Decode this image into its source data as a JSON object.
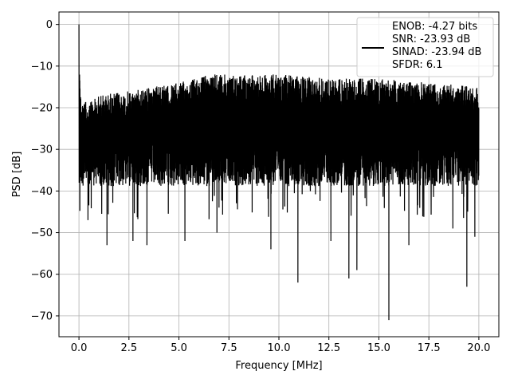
{
  "chart_data": {
    "type": "line",
    "title": "",
    "xlabel": "Frequency [MHz]",
    "ylabel": "PSD [dB]",
    "xlim": [
      -1.0,
      21.0
    ],
    "ylim": [
      -75,
      3
    ],
    "x_ticks": [
      0.0,
      2.5,
      5.0,
      7.5,
      10.0,
      12.5,
      15.0,
      17.5,
      20.0
    ],
    "x_tick_labels": [
      "0.0",
      "2.5",
      "5.0",
      "7.5",
      "10.0",
      "12.5",
      "15.0",
      "17.5",
      "20.0"
    ],
    "y_ticks": [
      0,
      -10,
      -20,
      -30,
      -40,
      -50,
      -60,
      -70
    ],
    "y_tick_labels": [
      "0",
      "−10",
      "−20",
      "−30",
      "−40",
      "−50",
      "−60",
      "−70"
    ],
    "grid": true,
    "legend_position": "top-right",
    "series": [
      {
        "name": "ENOB: -4.27 bits\nSNR: -23.93 dB\nSINAD: -23.94 dB\nSFDR: 6.1",
        "color": "#000000",
        "description": "noise-like power spectral density trace from 0 to 20 MHz with a peak at 0 dB near 0 MHz",
        "upper_envelope": {
          "x": [
            0.0,
            0.1,
            0.5,
            1.0,
            2.5,
            5.0,
            6.5,
            7.5,
            10.0,
            12.5,
            15.0,
            17.5,
            20.0
          ],
          "y": [
            0,
            -16,
            -17,
            -15,
            -14,
            -12,
            -10,
            -10,
            -10,
            -11,
            -11,
            -12,
            -13
          ]
        },
        "notable_minima": [
          {
            "x": 0.45,
            "y": -47
          },
          {
            "x": 1.4,
            "y": -53
          },
          {
            "x": 2.7,
            "y": -52
          },
          {
            "x": 3.4,
            "y": -53
          },
          {
            "x": 5.3,
            "y": -52
          },
          {
            "x": 6.9,
            "y": -50
          },
          {
            "x": 9.6,
            "y": -54
          },
          {
            "x": 10.95,
            "y": -62
          },
          {
            "x": 12.6,
            "y": -52
          },
          {
            "x": 13.9,
            "y": -59
          },
          {
            "x": 13.5,
            "y": -61
          },
          {
            "x": 15.5,
            "y": -71
          },
          {
            "x": 16.5,
            "y": -53
          },
          {
            "x": 18.7,
            "y": -49
          },
          {
            "x": 19.4,
            "y": -63
          },
          {
            "x": 19.8,
            "y": -51
          }
        ]
      }
    ]
  }
}
